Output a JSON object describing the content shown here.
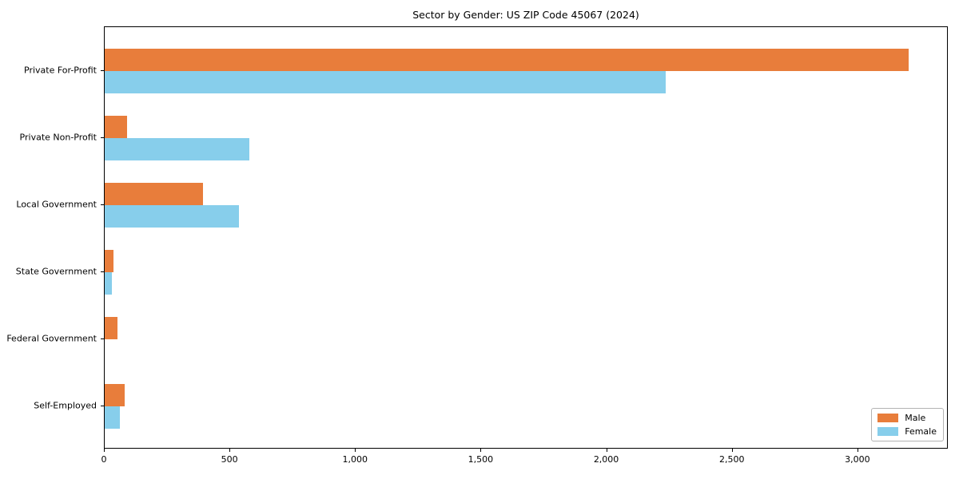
{
  "page": {
    "background_color": "#ffffff",
    "spine_color": "#000000",
    "text_color": "#000000"
  },
  "chart_data": {
    "type": "bar",
    "orientation": "horizontal",
    "title": "Sector by Gender: US ZIP Code 45067 (2024)",
    "xlabel": "",
    "ylabel": "",
    "categories": [
      "Private For-Profit",
      "Private Non-Profit",
      "Local Government",
      "State Government",
      "Federal Government",
      "Self-Employed"
    ],
    "series": [
      {
        "name": "Male",
        "color": "#E87D3B",
        "values": [
          3200,
          90,
          390,
          35,
          50,
          80
        ]
      },
      {
        "name": "Female",
        "color": "#87CEEB",
        "values": [
          2235,
          575,
          535,
          30,
          0,
          60
        ]
      }
    ],
    "xlim": [
      0,
      3360
    ],
    "x_ticks": [
      0,
      500,
      1000,
      1500,
      2000,
      2500,
      3000
    ],
    "x_tick_labels": [
      "0",
      "500",
      "1,000",
      "1,500",
      "2,000",
      "2,500",
      "3,000"
    ],
    "grid": false,
    "legend_position": "lower right",
    "legend_entries": [
      "Male",
      "Female"
    ]
  }
}
